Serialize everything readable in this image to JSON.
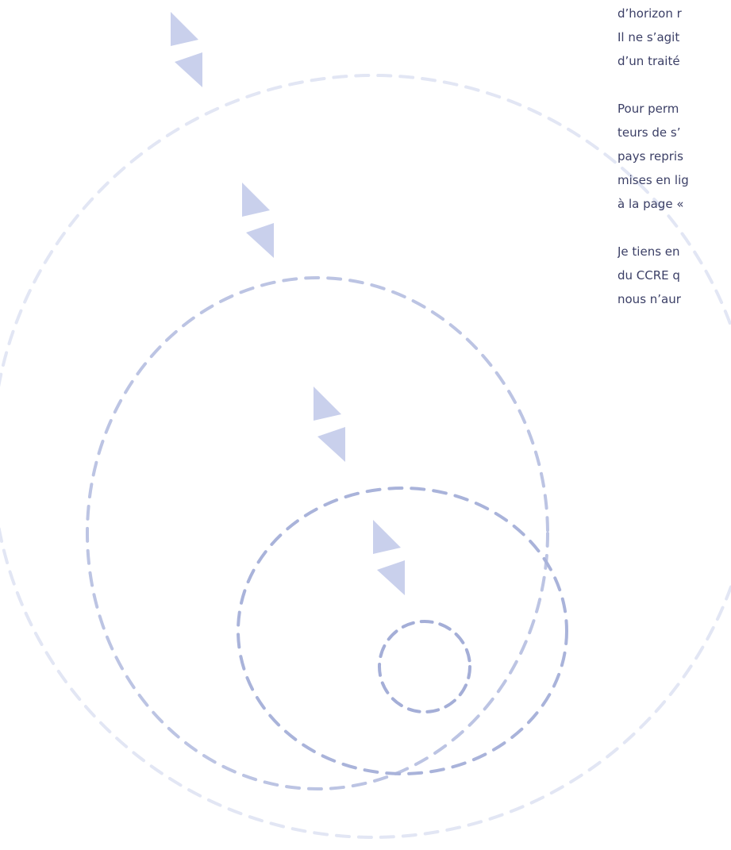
{
  "document": {
    "paragraphs": [
      {
        "lines": [
          "d’horizon r",
          "Il ne s’agit",
          "d’un traité"
        ]
      },
      {
        "lines": [
          "Pour perm",
          "teurs de s’",
          "pays repris",
          "mises en lig",
          "à la page «"
        ]
      },
      {
        "lines": [
          "Je tiens en",
          "du CCRE q",
          "nous n’aur"
        ]
      }
    ]
  }
}
